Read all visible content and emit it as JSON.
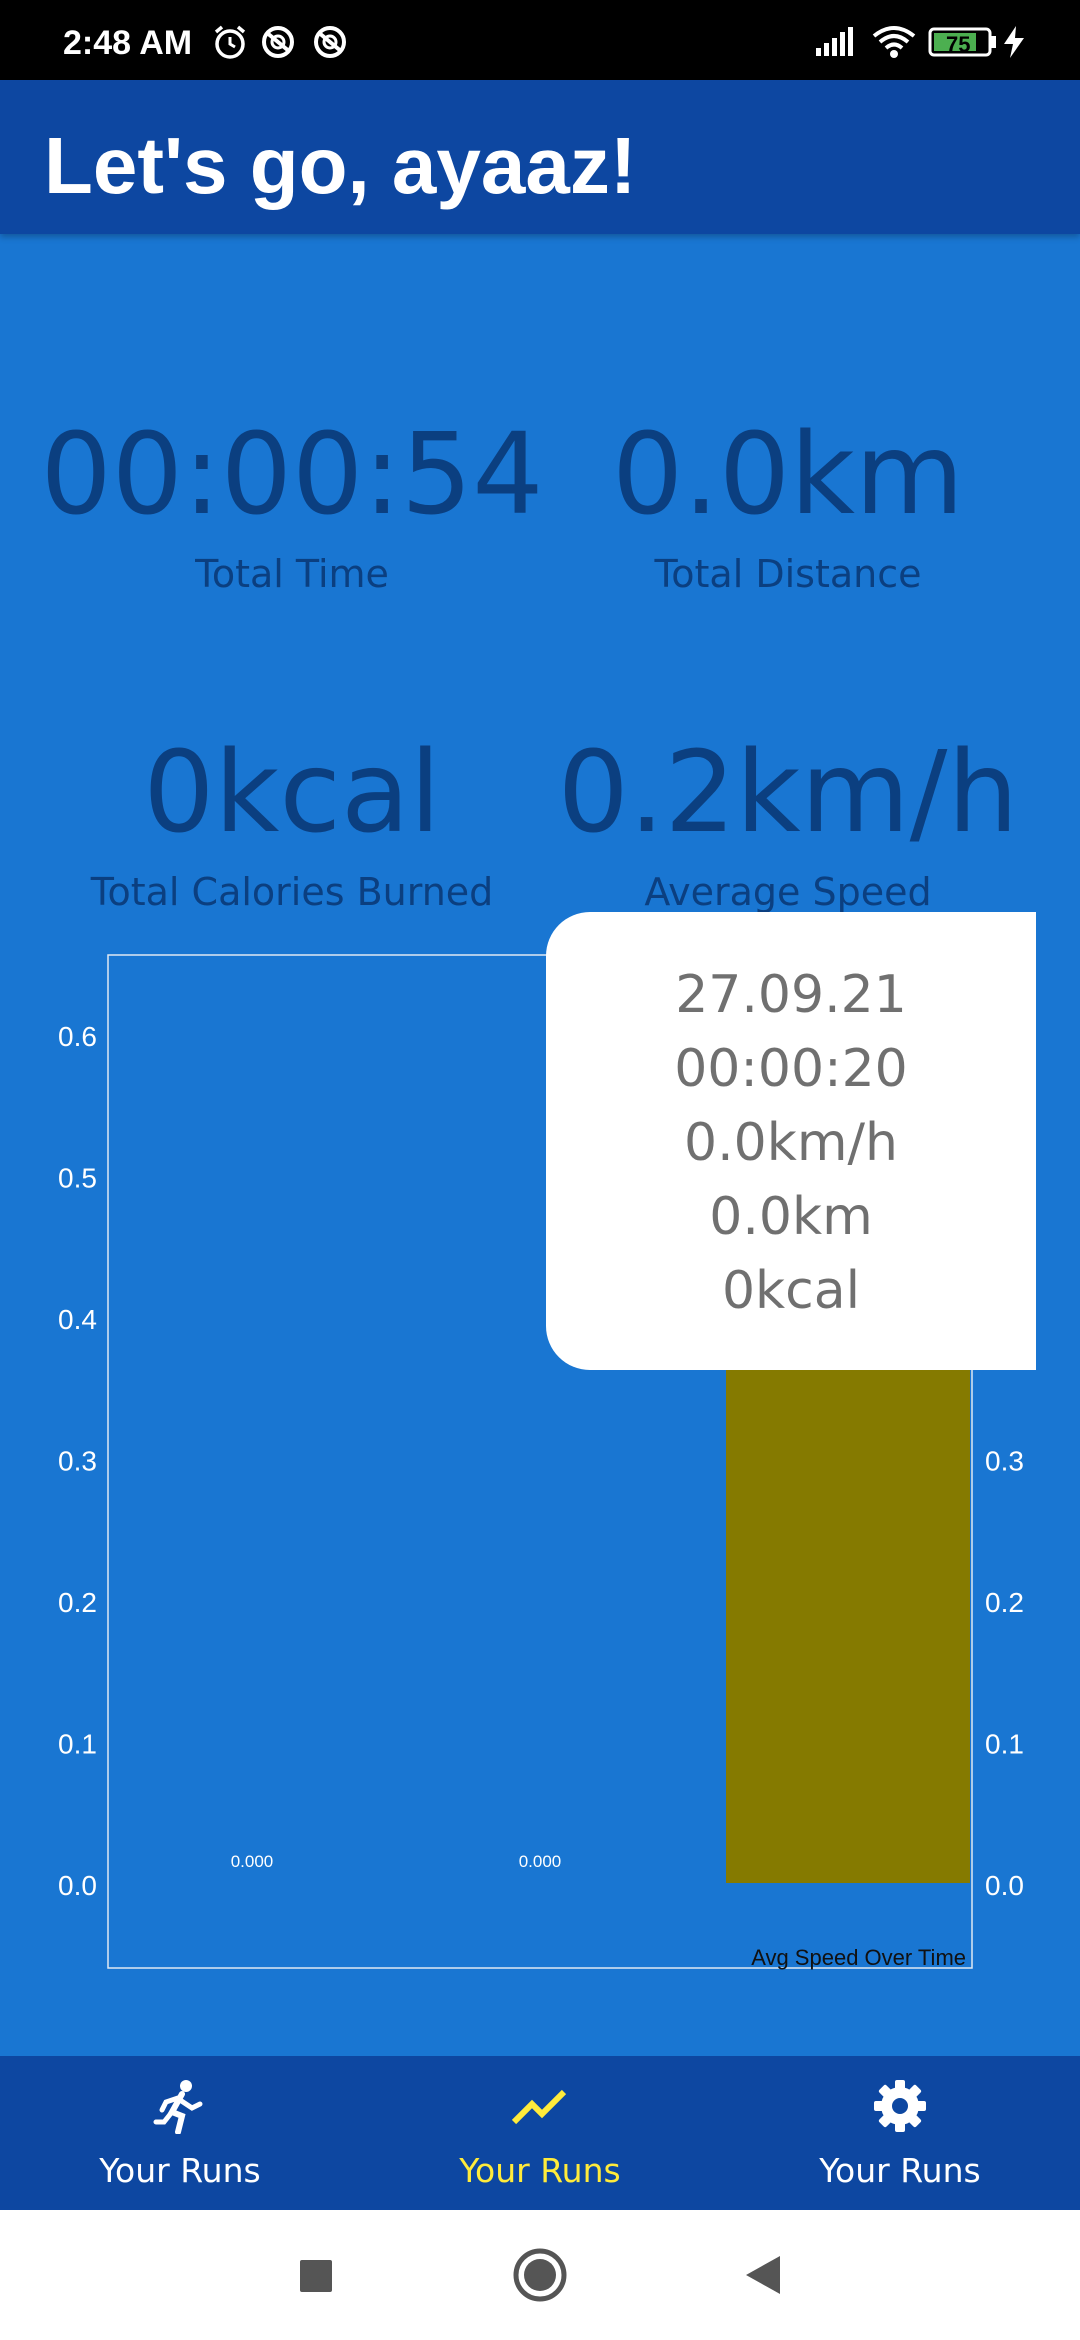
{
  "status_bar": {
    "time": "2:48 AM",
    "battery": "75",
    "icons": [
      "alarm-icon",
      "sync-icon",
      "sync-icon",
      "signal-icon",
      "wifi-icon",
      "battery-icon",
      "charging-icon"
    ]
  },
  "header": {
    "title": "Let's go, ayaaz!"
  },
  "stats": [
    {
      "value": "00:00:54",
      "label": "Total Time"
    },
    {
      "value": "0.0km",
      "label": "Total Distance"
    },
    {
      "value": "0kcal",
      "label": "Total Calories Burned"
    },
    {
      "value": "0.2km/h",
      "label": "Average Speed"
    }
  ],
  "chart_data": {
    "type": "bar",
    "categories": [
      "",
      "",
      ""
    ],
    "series": [
      {
        "values": [
          0.0,
          0.0,
          0.64
        ]
      }
    ],
    "data_labels": [
      "0.000",
      "0.000",
      ""
    ],
    "ylim": [
      0,
      0.65
    ],
    "yticks_left": [
      "0.0",
      "0.1",
      "0.2",
      "0.3",
      "0.4",
      "0.5",
      "0.6"
    ],
    "yticks_right": [
      "0.0",
      "0.1",
      "0.2",
      "0.3"
    ],
    "description": "Avg Speed Over Time",
    "bar_color": "#857a00",
    "grid": false
  },
  "tooltip": {
    "lines": [
      "27.09.21",
      "00:00:20",
      "0.0km/h",
      "0.0km",
      "0kcal"
    ]
  },
  "bottom_nav": [
    {
      "label": "Your Runs",
      "icon": "runner-icon",
      "active": false
    },
    {
      "label": "Your Runs",
      "icon": "trending-icon",
      "active": true
    },
    {
      "label": "Your Runs",
      "icon": "settings-icon",
      "active": false
    }
  ],
  "system_nav": [
    "recents-button",
    "home-button",
    "back-button"
  ],
  "colors": {
    "background": "#1976d2",
    "primary_dark": "#0d47a1",
    "accent": "#ffeb3b",
    "stat_text": "#0b3f80"
  }
}
